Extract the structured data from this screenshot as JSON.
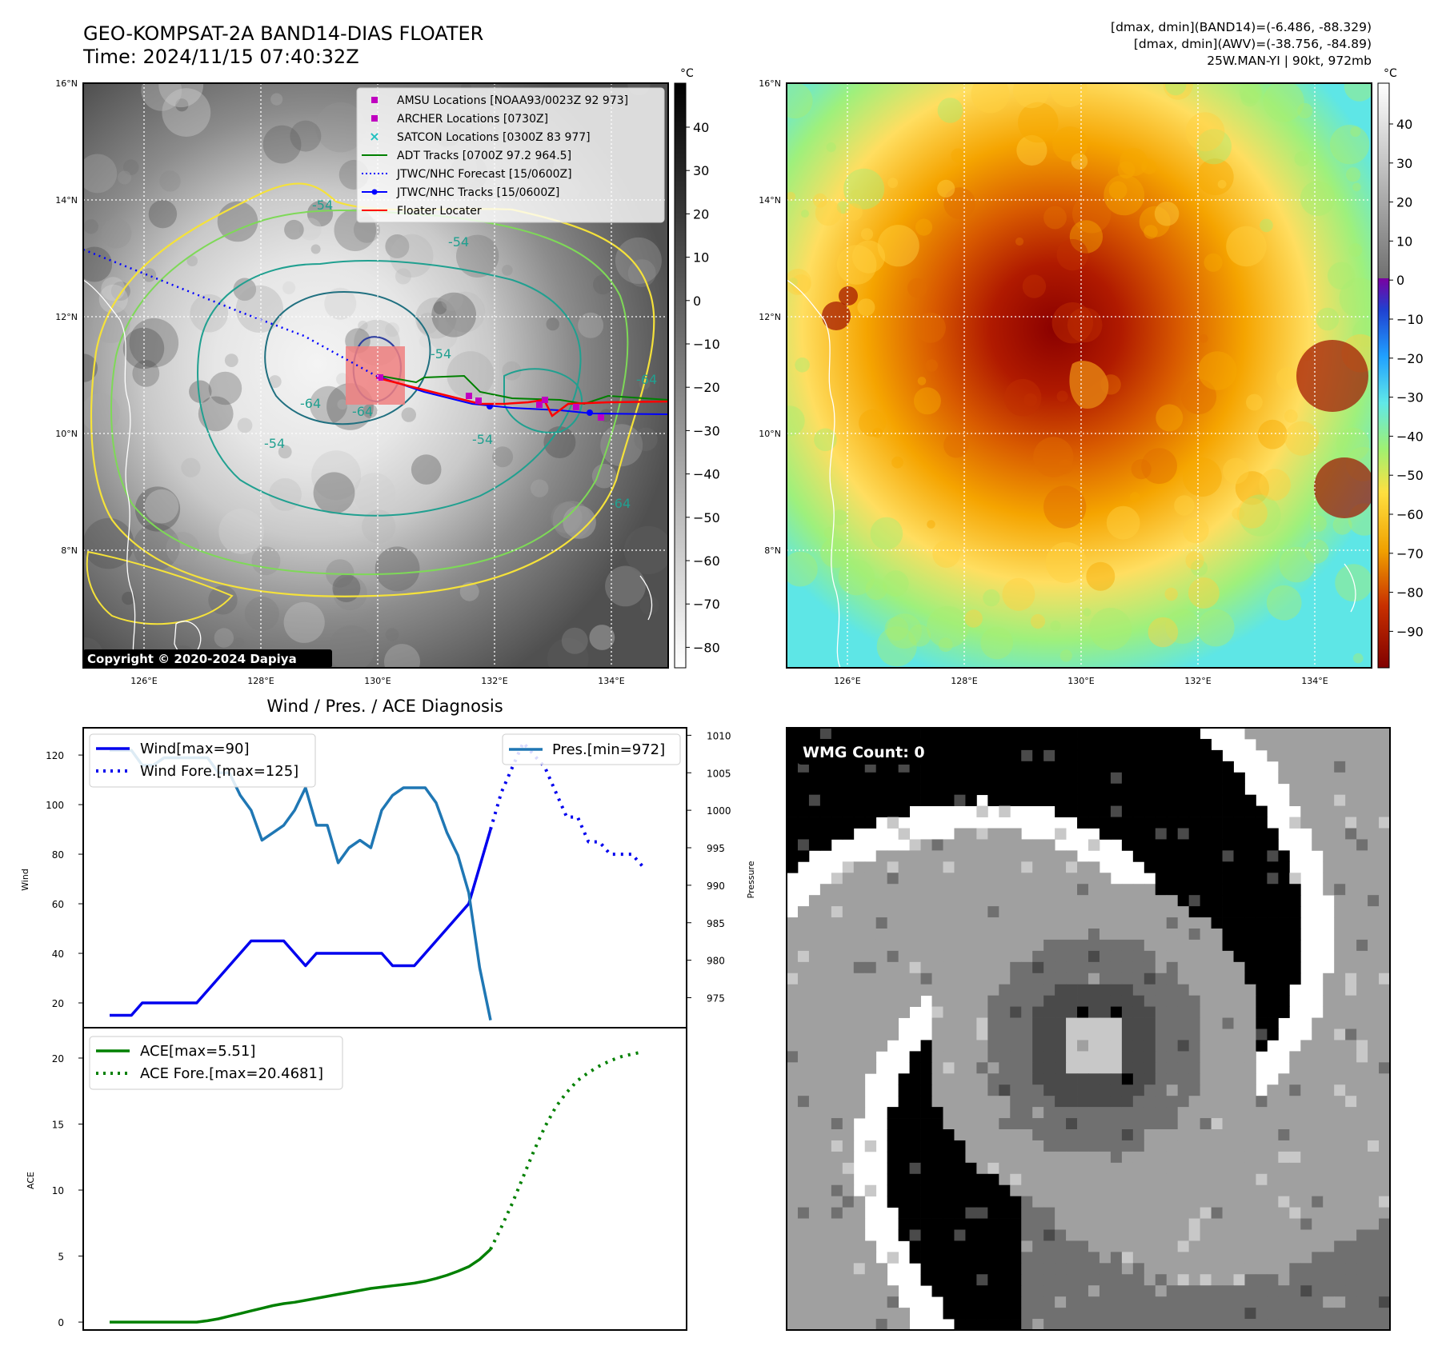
{
  "header": {
    "title_line1": "GEO-KOMPSAT-2A BAND14-DIAS FLOATER",
    "title_line2": "Time: 2024/11/15 07:40:32Z",
    "info_line1": "[dmax, dmin](BAND14)=(-6.486, -88.329)",
    "info_line2": "[dmax, dmin](AWV)=(-38.756, -84.89)",
    "info_line3": "25W.MAN-YI | 90kt, 972mb"
  },
  "maps": {
    "lat_ticks": [
      "16°N",
      "14°N",
      "12°N",
      "10°N",
      "8°N"
    ],
    "lon_ticks": [
      "126°E",
      "128°E",
      "130°E",
      "132°E",
      "134°E"
    ],
    "copyright": "Copyright © 2020-2024 Dapiya",
    "contour_labels": [
      "-54",
      "-54",
      "-64",
      "-54",
      "-54",
      "-64",
      "-54",
      "-64",
      "-64"
    ],
    "colorbar_unit": "°C",
    "left_colorbar_ticks": [
      "40",
      "30",
      "20",
      "10",
      "0",
      "−10",
      "−20",
      "−30",
      "−40",
      "−50",
      "−60",
      "−70",
      "−80"
    ],
    "right_colorbar_ticks": [
      "40",
      "30",
      "20",
      "10",
      "0",
      "−10",
      "−20",
      "−30",
      "−40",
      "−50",
      "−60",
      "−70",
      "−80",
      "−90"
    ],
    "legend": [
      {
        "label": "AMSU Locations [NOAA93/0023Z 92 973]",
        "color": "#c000c0",
        "marker": "square"
      },
      {
        "label": "ARCHER Locations [0730Z]",
        "color": "#c000c0",
        "marker": "square"
      },
      {
        "label": "SATCON Locations [0300Z 83 977]",
        "color": "#20c0c0",
        "marker": "x"
      },
      {
        "label": "ADT Tracks [0700Z 97.2 964.5]",
        "color": "#008000",
        "marker": "line"
      },
      {
        "label": "JTWC/NHC Forecast [15/0600Z]",
        "color": "#0000ff",
        "marker": "dotted"
      },
      {
        "label": "JTWC/NHC Tracks [15/0600Z]",
        "color": "#0000ff",
        "marker": "line-dot"
      },
      {
        "label": "Floater Locater",
        "color": "#ff0000",
        "marker": "line"
      }
    ]
  },
  "diagnosis": {
    "title": "Wind / Pres. / ACE Diagnosis",
    "wind_ylabel": "Wind",
    "pres_ylabel": "Pressure",
    "ace_ylabel": "ACE",
    "wind_ticks": [
      "120",
      "100",
      "80",
      "60",
      "40",
      "20"
    ],
    "pres_ticks": [
      "1010",
      "1005",
      "1000",
      "995",
      "990",
      "985",
      "980",
      "975"
    ],
    "ace_ticks": [
      "20",
      "15",
      "10",
      "5",
      "0"
    ],
    "legend_wind": "Wind[max=90]",
    "legend_wind_fore": "Wind Fore.[max=125]",
    "legend_pres": "Pres.[min=972]",
    "legend_ace": "ACE[max=5.51]",
    "legend_ace_fore": "ACE Fore.[max=20.4681]"
  },
  "wmg": {
    "label": "WMG Count: 0"
  },
  "colors": {
    "wind": "#0000ee",
    "pressure": "#1f77b4",
    "ace": "#008000",
    "jtwc": "#0000ff",
    "floater": "#ff0000"
  },
  "chart_data": [
    {
      "type": "line",
      "title": "Wind / Pres. / ACE Diagnosis",
      "xlabel": "",
      "ylabel": "Wind",
      "ylim": [
        10,
        131
      ],
      "series": [
        {
          "name": "Wind[max=90]",
          "values": [
            15,
            15,
            15,
            20,
            20,
            20,
            20,
            20,
            20,
            25,
            30,
            35,
            40,
            45,
            45,
            45,
            45,
            40,
            35,
            40,
            40,
            40,
            40,
            40,
            40,
            40,
            35,
            35,
            35,
            40,
            45,
            50,
            55,
            60,
            75,
            90
          ]
        },
        {
          "name": "Wind Fore.[max=125]",
          "values": [
            90,
            105,
            115,
            125,
            120,
            115,
            105,
            95,
            95,
            85,
            85,
            80,
            80,
            80,
            75
          ]
        }
      ]
    },
    {
      "type": "line",
      "ylabel": "Pressure",
      "ylim": [
        971,
        1011
      ],
      "series": [
        {
          "name": "Pres.[min=972]",
          "values": [
            1008,
            1008,
            1008,
            1006,
            1006,
            1007,
            1007,
            1007,
            1007,
            1007,
            1005,
            1005,
            1002,
            1000,
            996,
            997,
            998,
            1000,
            1003,
            998,
            998,
            993,
            995,
            996,
            995,
            1000,
            1002,
            1003,
            1003,
            1003,
            1001,
            997,
            994,
            989,
            979,
            972
          ]
        }
      ]
    },
    {
      "type": "line",
      "ylabel": "ACE",
      "ylim": [
        -0.6,
        22.3
      ],
      "series": [
        {
          "name": "ACE[max=5.51]",
          "values": [
            0,
            0,
            0,
            0,
            0,
            0,
            0,
            0,
            0,
            0.1,
            0.25,
            0.45,
            0.65,
            0.85,
            1.05,
            1.25,
            1.4,
            1.5,
            1.65,
            1.8,
            1.95,
            2.1,
            2.25,
            2.4,
            2.55,
            2.65,
            2.75,
            2.85,
            2.95,
            3.1,
            3.3,
            3.55,
            3.85,
            4.2,
            4.75,
            5.51
          ]
        },
        {
          "name": "ACE Fore.[max=20.4681]",
          "values": [
            5.51,
            7.2,
            9.0,
            11.0,
            13.0,
            14.8,
            16.3,
            17.4,
            18.3,
            18.9,
            19.4,
            19.8,
            20.1,
            20.3,
            20.47
          ]
        }
      ]
    }
  ]
}
